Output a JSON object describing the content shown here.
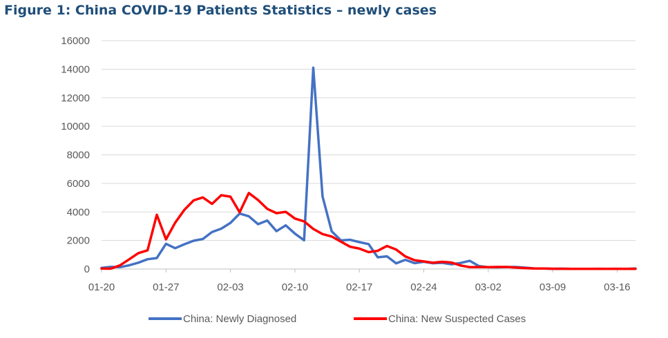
{
  "title": "Figure 1: China COVID-19 Patients Statistics – newly cases",
  "colors": {
    "title": "#1f4e79",
    "grid": "#d9d9d9",
    "axis": "#bfbfbf",
    "text": "#595959"
  },
  "chart_data": {
    "type": "line",
    "x_type": "date",
    "x": [
      "01-20",
      "01-21",
      "01-22",
      "01-23",
      "01-24",
      "01-25",
      "01-26",
      "01-27",
      "01-28",
      "01-29",
      "01-30",
      "01-31",
      "02-01",
      "02-02",
      "02-03",
      "02-04",
      "02-05",
      "02-06",
      "02-07",
      "02-08",
      "02-09",
      "02-10",
      "02-11",
      "02-12",
      "02-13",
      "02-14",
      "02-15",
      "02-16",
      "02-17",
      "02-18",
      "02-19",
      "02-20",
      "02-21",
      "02-22",
      "02-23",
      "02-24",
      "02-25",
      "02-26",
      "02-27",
      "02-28",
      "02-29",
      "03-01",
      "03-02",
      "03-03",
      "03-04",
      "03-05",
      "03-06",
      "03-07",
      "03-08",
      "03-09",
      "03-10",
      "03-11",
      "03-12",
      "03-13",
      "03-14",
      "03-15",
      "03-16",
      "03-17",
      "03-18"
    ],
    "xticks": [
      "01-20",
      "01-27",
      "02-03",
      "02-10",
      "02-17",
      "02-24",
      "03-02",
      "03-09",
      "03-16"
    ],
    "ylim": [
      0,
      16000
    ],
    "yticks": [
      0,
      2000,
      4000,
      6000,
      8000,
      10000,
      12000,
      14000,
      16000
    ],
    "grid": true,
    "legend": "bottom",
    "series": [
      {
        "name": "China: Newly Diagnosed",
        "color": "#4472c4",
        "values": [
          77,
          149,
          131,
          259,
          444,
          688,
          769,
          1771,
          1459,
          1737,
          1982,
          2102,
          2590,
          2829,
          3235,
          3887,
          3694,
          3143,
          3399,
          2656,
          3062,
          2478,
          2015,
          14108,
          5090,
          2641,
          2008,
          2048,
          1886,
          1749,
          820,
          889,
          397,
          648,
          409,
          508,
          406,
          433,
          327,
          427,
          573,
          202,
          125,
          119,
          139,
          143,
          99,
          44,
          40,
          19,
          24,
          15,
          8,
          11,
          20,
          16,
          21,
          13,
          34
        ]
      },
      {
        "name": "China: New Suspected Cases",
        "color": "#ff0000",
        "values": [
          27,
          26,
          257,
          680,
          1118,
          1309,
          3806,
          2077,
          3248,
          4148,
          4812,
          5019,
          4562,
          5173,
          5072,
          3971,
          5328,
          4833,
          4214,
          3916,
          4008,
          3536,
          3342,
          2807,
          2450,
          2277,
          1918,
          1563,
          1432,
          1185,
          1277,
          1614,
          1361,
          882,
          620,
          530,
          439,
          508,
          452,
          248,
          132,
          141,
          129,
          143,
          143,
          102,
          64,
          37,
          36,
          21,
          17,
          9,
          9,
          8,
          12,
          8,
          14,
          11,
          10
        ]
      }
    ]
  }
}
